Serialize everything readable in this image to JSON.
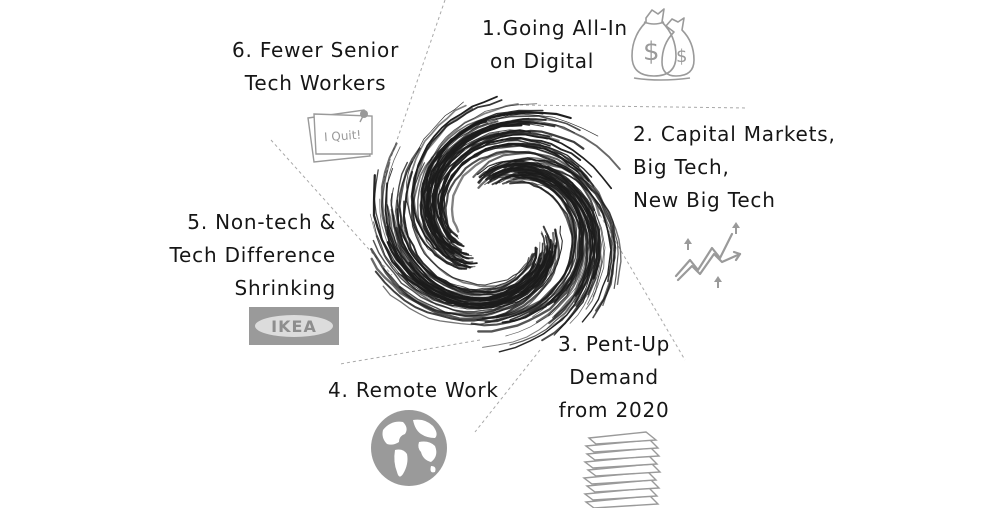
{
  "factors": [
    {
      "lines": [
        "1.Going All-In",
        "on Digital"
      ],
      "icon": "money-bags-icon"
    },
    {
      "lines": [
        "2. Capital Markets,",
        "Big Tech,",
        "New Big Tech"
      ],
      "icon": "rising-chart-icon"
    },
    {
      "lines": [
        "3. Pent-Up",
        "Demand",
        "from 2020"
      ],
      "icon": "paper-stack-icon"
    },
    {
      "lines": [
        "4. Remote Work"
      ],
      "icon": "globe-icon"
    },
    {
      "lines": [
        "5. Non-tech &",
        "Tech Difference",
        "Shrinking"
      ],
      "icon": "ikea-logo-icon"
    },
    {
      "lines": [
        "6. Fewer Senior",
        "Tech Workers"
      ],
      "icon": "quit-note-icon"
    }
  ],
  "icons": {
    "ikea_text": "IKEA",
    "quit_note_text": "I Quit!"
  },
  "colors": {
    "ink": "#161616",
    "swirl": "#1c1c1c",
    "icon_gray": "#9a9a9a",
    "divider": "#a8a8a8"
  }
}
